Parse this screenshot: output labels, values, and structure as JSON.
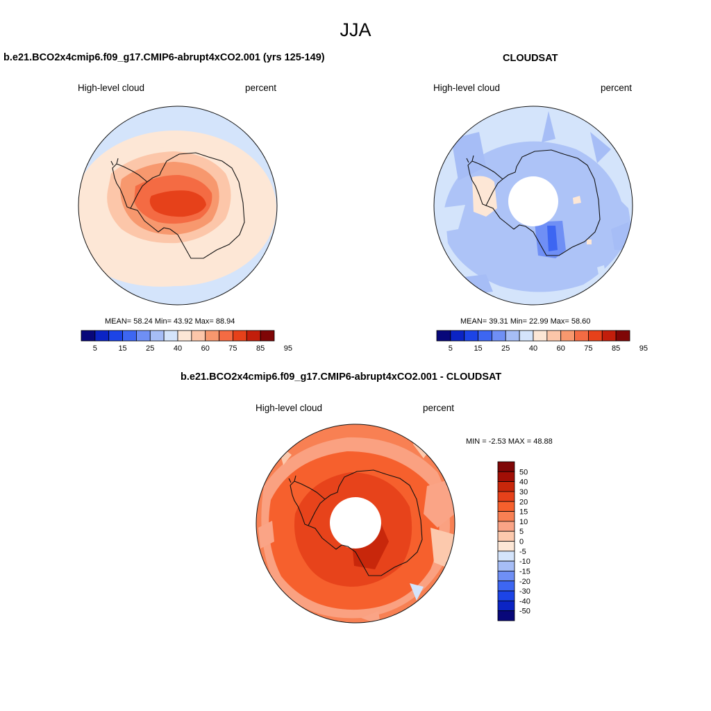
{
  "page": {
    "title": "JJA"
  },
  "panels": [
    {
      "id": "model",
      "title": "b.e21.BCO2x4cmip6.f09_g17.CMIP6-abrupt4xCO2.001 (yrs 125-149)",
      "variable": "High-level cloud",
      "units": "percent",
      "stats": "MEAN=  58.24  Min=  43.92  Max=  88.94",
      "colorbar_labels": [
        "5",
        "15",
        "25",
        "40",
        "60",
        "75",
        "85",
        "95"
      ]
    },
    {
      "id": "obs",
      "title": "CLOUDSAT",
      "variable": "High-level cloud",
      "units": "percent",
      "stats": "MEAN=  39.31  Min=  22.99  Max=  58.60",
      "colorbar_labels": [
        "5",
        "15",
        "25",
        "40",
        "60",
        "75",
        "85",
        "95"
      ]
    },
    {
      "id": "diff",
      "title": "b.e21.BCO2x4cmip6.f09_g17.CMIP6-abrupt4xCO2.001 - CLOUDSAT",
      "variable": "High-level cloud",
      "units": "percent",
      "stats": "MIN =  -2.53 MAX =  48.88",
      "colorbar_labels": [
        "50",
        "40",
        "30",
        "20",
        "15",
        "10",
        "5",
        "0",
        "-5",
        "-10",
        "-15",
        "-20",
        "-30",
        "-40",
        "-50"
      ]
    }
  ],
  "colors": {
    "abs_scale": [
      "#08087a",
      "#0b24c4",
      "#1c44e6",
      "#3d66f2",
      "#6f8ff5",
      "#a6bdf6",
      "#d4e4fb",
      "#fde7d6",
      "#fcc6a9",
      "#f7986e",
      "#f46b43",
      "#e6411a",
      "#c21e0b",
      "#7f0606"
    ],
    "diff_scale": [
      "#7f0606",
      "#a10f06",
      "#c8270b",
      "#e6411a",
      "#f6602d",
      "#f88053",
      "#faa486",
      "#fcc9ad",
      "#fde7d6",
      "#d4e4fb",
      "#a6bdf6",
      "#6f8ff5",
      "#3d66f2",
      "#1c44e6",
      "#0b24c4",
      "#08087a"
    ]
  }
}
